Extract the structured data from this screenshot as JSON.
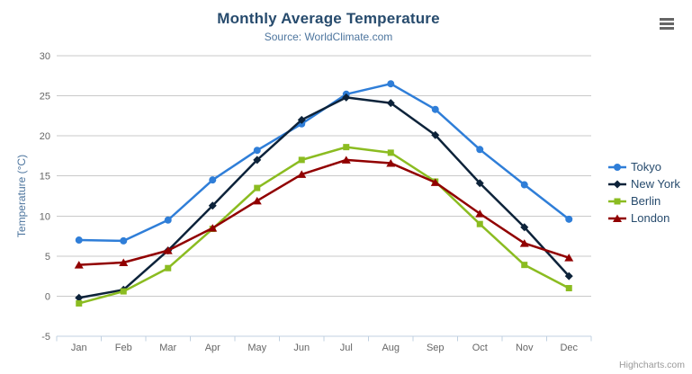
{
  "credits": "Highcharts.com",
  "icons": {
    "context_menu": "hamburger-menu"
  },
  "chart_data": {
    "type": "line",
    "title": "Monthly Average Temperature",
    "subtitle": "Source: WorldClimate.com",
    "xlabel": "",
    "ylabel": "Temperature (°C)",
    "ylim": [
      -5,
      30
    ],
    "yticks": [
      -5,
      0,
      5,
      10,
      15,
      20,
      25,
      30
    ],
    "grid": true,
    "legend_position": "right",
    "categories": [
      "Jan",
      "Feb",
      "Mar",
      "Apr",
      "May",
      "Jun",
      "Jul",
      "Aug",
      "Sep",
      "Oct",
      "Nov",
      "Dec"
    ],
    "series": [
      {
        "name": "Tokyo",
        "color": "#2f7ed8",
        "marker": "circle",
        "values": [
          7.0,
          6.9,
          9.5,
          14.5,
          18.2,
          21.5,
          25.2,
          26.5,
          23.3,
          18.3,
          13.9,
          9.6
        ]
      },
      {
        "name": "New York",
        "color": "#0d233a",
        "marker": "diamond",
        "values": [
          -0.2,
          0.8,
          5.7,
          11.3,
          17.0,
          22.0,
          24.8,
          24.1,
          20.1,
          14.1,
          8.6,
          2.5
        ]
      },
      {
        "name": "Berlin",
        "color": "#8bbc21",
        "marker": "square",
        "values": [
          -0.9,
          0.6,
          3.5,
          8.4,
          13.5,
          17.0,
          18.6,
          17.9,
          14.3,
          9.0,
          3.9,
          1.0
        ]
      },
      {
        "name": "London",
        "color": "#910000",
        "marker": "triangle",
        "values": [
          3.9,
          4.2,
          5.7,
          8.5,
          11.9,
          15.2,
          17.0,
          16.6,
          14.2,
          10.3,
          6.6,
          4.8
        ]
      }
    ]
  }
}
